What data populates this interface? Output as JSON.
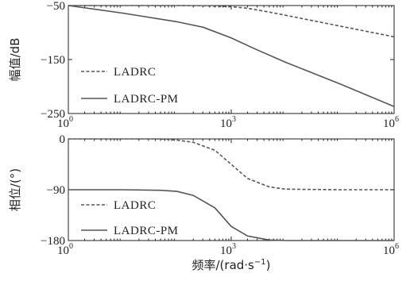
{
  "chart_data": [
    {
      "type": "line",
      "xscale": "log",
      "xlim": [
        1,
        1000000
      ],
      "ylim": [
        -250,
        -50
      ],
      "xticks": [
        {
          "base": "10",
          "exp": "0"
        },
        {
          "base": "10",
          "exp": "3"
        },
        {
          "base": "10",
          "exp": "6"
        }
      ],
      "yticks": [
        {
          "value": -50,
          "label": "−50"
        },
        {
          "value": -150,
          "label": "−150"
        },
        {
          "value": -250,
          "label": "−250"
        }
      ],
      "ylabel": "幅值/dB",
      "xlabel": "",
      "legend_position": "bottom-left",
      "series": [
        {
          "name": "LADRC",
          "style": "dashed",
          "color": "#555555",
          "x": [
            1,
            10,
            100,
            300,
            1000,
            2000,
            5000,
            10000,
            100000,
            1000000
          ],
          "y": [
            -50,
            -50,
            -50,
            -50.5,
            -52,
            -55,
            -62,
            -68,
            -88,
            -108
          ]
        },
        {
          "name": "LADRC-PM",
          "style": "solid",
          "color": "#555555",
          "x": [
            1,
            10,
            100,
            300,
            1000,
            3000,
            10000,
            100000,
            1000000
          ],
          "y": [
            -50,
            -64,
            -80,
            -90,
            -110,
            -132,
            -155,
            -195,
            -237
          ]
        }
      ]
    },
    {
      "type": "line",
      "xscale": "log",
      "xlim": [
        1,
        1000000
      ],
      "ylim": [
        -180,
        0
      ],
      "xticks": [
        {
          "base": "10",
          "exp": "0"
        },
        {
          "base": "10",
          "exp": "3"
        },
        {
          "base": "10",
          "exp": "6"
        }
      ],
      "yticks": [
        {
          "value": 0,
          "label": "0"
        },
        {
          "value": -90,
          "label": "−90"
        },
        {
          "value": -180,
          "label": "−180"
        }
      ],
      "ylabel": "相位/(°)",
      "xlabel": {
        "prefix": "频率/(rad·s",
        "sup": "−1",
        "suffix": ")"
      },
      "legend_position": "bottom-left",
      "series": [
        {
          "name": "LADRC",
          "style": "dashed",
          "color": "#555555",
          "x": [
            1,
            10,
            50,
            100,
            200,
            500,
            1000,
            2000,
            5000,
            10000,
            100000,
            1000000
          ],
          "y": [
            0,
            0,
            0,
            -2,
            -6,
            -20,
            -45,
            -70,
            -85,
            -89,
            -90,
            -90
          ]
        },
        {
          "name": "LADRC-PM",
          "style": "solid",
          "color": "#555555",
          "x": [
            1,
            10,
            50,
            100,
            200,
            500,
            1000,
            2000,
            5000,
            10000,
            1000000
          ],
          "y": [
            -90,
            -90,
            -91,
            -93,
            -100,
            -122,
            -155,
            -172,
            -179,
            -180,
            -180
          ]
        }
      ]
    }
  ]
}
